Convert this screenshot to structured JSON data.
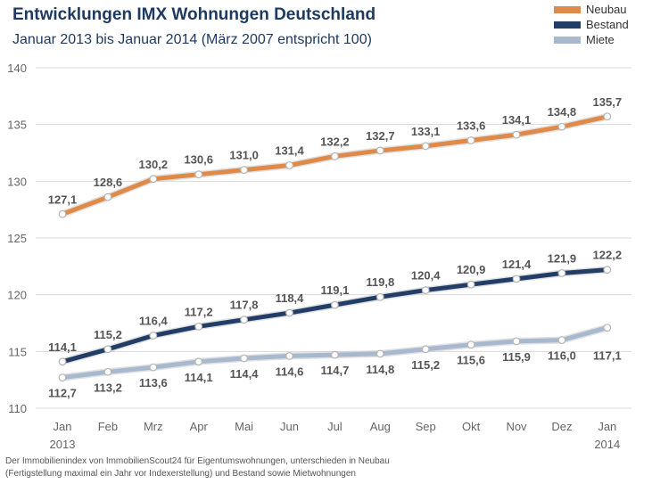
{
  "header": {
    "title": "Entwicklungen IMX Wohnungen Deutschland",
    "subtitle": "Januar 2013 bis Januar 2014 (März 2007 entspricht 100)"
  },
  "footnote": {
    "line1": "Der Immobilienindex von ImmobilienScout24 für Eigentumswohnungen, unterschieden in Neubau",
    "line2": "(Fertigstellung maximal ein Jahr vor Indexerstellung) und Bestand sowie Mietwohnungen"
  },
  "chart_data": {
    "type": "line",
    "title": "Entwicklungen IMX Wohnungen Deutschland",
    "subtitle": "Januar 2013 bis Januar 2014 (März 2007 entspricht 100)",
    "categories": [
      "Jan",
      "Feb",
      "Mrz",
      "Apr",
      "Mai",
      "Jun",
      "Jul",
      "Aug",
      "Sep",
      "Okt",
      "Nov",
      "Dez",
      "Jan"
    ],
    "category_sublabels": [
      "2013",
      "",
      "",
      "",
      "",
      "",
      "",
      "",
      "",
      "",
      "",
      "",
      "2014"
    ],
    "ylim": [
      110,
      140
    ],
    "yticks": [
      110,
      115,
      120,
      125,
      130,
      135,
      140
    ],
    "grid": true,
    "legend_position": "top-right",
    "series": [
      {
        "name": "Neubau",
        "color": "#e08a4a",
        "values": [
          127.1,
          128.6,
          130.2,
          130.6,
          131.0,
          131.4,
          132.2,
          132.7,
          133.1,
          133.6,
          134.1,
          134.8,
          135.7
        ],
        "labels": [
          "127,1",
          "128,6",
          "130,2",
          "130,6",
          "131,0",
          "131,4",
          "132,2",
          "132,7",
          "133,1",
          "133,6",
          "134,1",
          "134,8",
          "135,7"
        ]
      },
      {
        "name": "Bestand",
        "color": "#233e66",
        "values": [
          114.1,
          115.2,
          116.4,
          117.2,
          117.8,
          118.4,
          119.1,
          119.8,
          120.4,
          120.9,
          121.4,
          121.9,
          122.2
        ],
        "labels": [
          "114,1",
          "115,2",
          "116,4",
          "117,2",
          "117,8",
          "118,4",
          "119,1",
          "119,8",
          "120,4",
          "120,9",
          "121,4",
          "121,9",
          "122,2"
        ]
      },
      {
        "name": "Miete",
        "color": "#a8b9cf",
        "values": [
          112.7,
          113.2,
          113.6,
          114.1,
          114.4,
          114.6,
          114.7,
          114.8,
          115.2,
          115.6,
          115.9,
          116.0,
          117.1
        ],
        "labels": [
          "112,7",
          "113,2",
          "113,6",
          "114,1",
          "114,4",
          "114,6",
          "114,7",
          "114,8",
          "115,2",
          "115,6",
          "115,9",
          "116,0",
          "117,1"
        ]
      }
    ]
  }
}
